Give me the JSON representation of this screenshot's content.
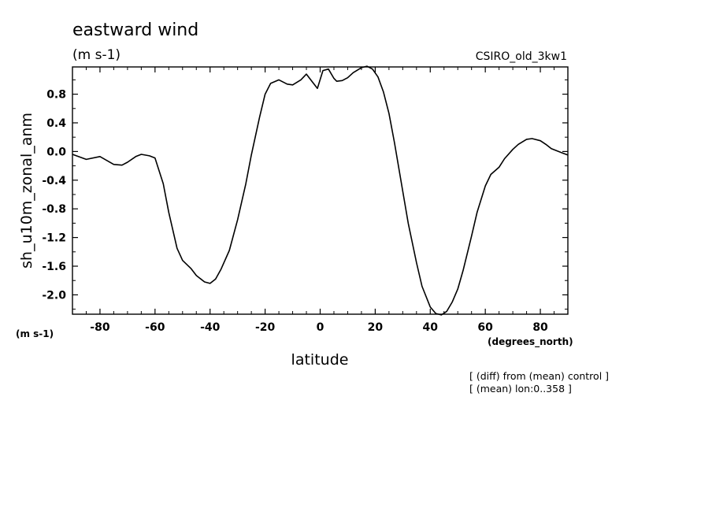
{
  "chart_data": {
    "type": "line",
    "title": "eastward wind",
    "units": "(m s-1)",
    "model_label": "CSIRO_old_3kw1",
    "ylabel": "sh_u10m_zonal_anm",
    "y_units_label": "(m s-1)",
    "xlabel": "latitude",
    "x_units_label": "(degrees_north)",
    "footnotes": [
      "[ (diff) from (mean) control ]",
      "[ (mean) lon:0..358 ]"
    ],
    "xlim": [
      -90,
      90
    ],
    "ylim": [
      -2.27,
      1.18
    ],
    "x_ticks": [
      -80,
      -60,
      -40,
      -20,
      0,
      20,
      40,
      60,
      80
    ],
    "x_tick_labels": [
      "-80",
      "-60",
      "-40",
      "-20",
      "0",
      "20",
      "40",
      "60",
      "80"
    ],
    "y_ticks": [
      0.8,
      0.4,
      0.0,
      -0.4,
      -0.8,
      -1.2,
      -1.6,
      -2.0
    ],
    "y_tick_labels": [
      "0.8",
      "0.4",
      "0.0",
      "-0.4",
      "-0.8",
      "-1.2",
      "-1.6",
      "-2.0"
    ],
    "grid": false,
    "line_color": "#000000",
    "series": [
      {
        "x": [
          -90,
          -85,
          -80,
          -75,
          -72,
          -70,
          -67,
          -65,
          -62,
          -60,
          -57,
          -55,
          -52,
          -50,
          -47,
          -45,
          -42,
          -40,
          -38,
          -36,
          -33,
          -30,
          -27,
          -25,
          -22,
          -20,
          -18,
          -15,
          -12,
          -10,
          -7,
          -5,
          -3,
          -1,
          1,
          3,
          5,
          6,
          8,
          10,
          12,
          15,
          17,
          19,
          21,
          23,
          25,
          27,
          30,
          32,
          35,
          37,
          40,
          42,
          44,
          46,
          48,
          50,
          52,
          55,
          57,
          60,
          62,
          65,
          67,
          70,
          72,
          75,
          77,
          80,
          82,
          84,
          86,
          88,
          90
        ],
        "y": [
          -0.04,
          -0.11,
          -0.07,
          -0.18,
          -0.19,
          -0.15,
          -0.07,
          -0.04,
          -0.06,
          -0.09,
          -0.45,
          -0.85,
          -1.35,
          -1.52,
          -1.63,
          -1.73,
          -1.82,
          -1.84,
          -1.78,
          -1.64,
          -1.38,
          -0.95,
          -0.45,
          -0.05,
          0.48,
          0.8,
          0.95,
          1.0,
          0.94,
          0.93,
          1.0,
          1.08,
          0.98,
          0.88,
          1.13,
          1.15,
          1.02,
          0.98,
          0.99,
          1.03,
          1.1,
          1.17,
          1.19,
          1.15,
          1.04,
          0.83,
          0.53,
          0.12,
          -0.55,
          -1.0,
          -1.55,
          -1.88,
          -2.17,
          -2.26,
          -2.28,
          -2.23,
          -2.1,
          -1.92,
          -1.65,
          -1.18,
          -0.85,
          -0.48,
          -0.32,
          -0.22,
          -0.1,
          0.03,
          0.1,
          0.17,
          0.18,
          0.15,
          0.1,
          0.04,
          0.01,
          -0.02,
          -0.05
        ]
      }
    ]
  }
}
